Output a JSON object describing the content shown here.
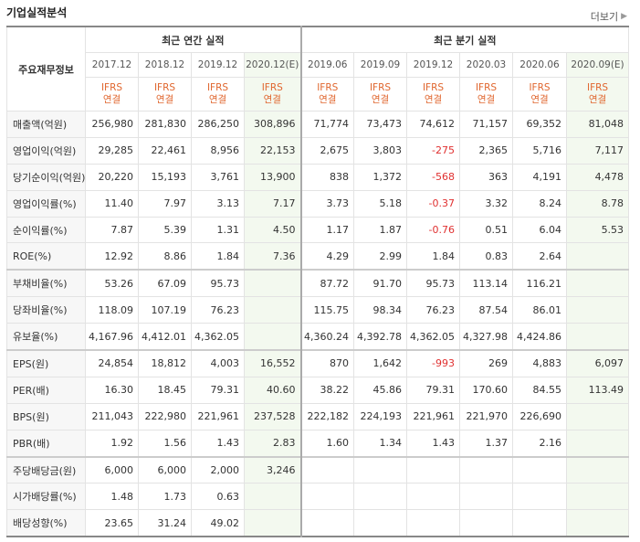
{
  "title": "기업실적분석",
  "more_label": "더보기",
  "header": {
    "corner": "주요재무정보",
    "annual_group": "최근 연간 실적",
    "quarter_group": "최근 분기 실적",
    "annual_periods": [
      "2017.12",
      "2018.12",
      "2019.12",
      "2020.12(E)"
    ],
    "quarter_periods": [
      "2019.06",
      "2019.09",
      "2019.12",
      "2020.03",
      "2020.06",
      "2020.09(E)"
    ],
    "basis_line1": "IFRS",
    "basis_line2": "연결"
  },
  "rows": [
    {
      "label": "매출액(억원)",
      "values": [
        "256,980",
        "281,830",
        "286,250",
        "308,896",
        "71,774",
        "73,473",
        "74,612",
        "71,157",
        "69,352",
        "81,048"
      ]
    },
    {
      "label": "영업이익(억원)",
      "values": [
        "29,285",
        "22,461",
        "8,956",
        "22,153",
        "2,675",
        "3,803",
        "-275",
        "2,365",
        "5,716",
        "7,117"
      ]
    },
    {
      "label": "당기순이익(억원)",
      "values": [
        "20,220",
        "15,193",
        "3,761",
        "13,900",
        "838",
        "1,372",
        "-568",
        "363",
        "4,191",
        "4,478"
      ]
    },
    {
      "label": "영업이익률(%)",
      "values": [
        "11.40",
        "7.97",
        "3.13",
        "7.17",
        "3.73",
        "5.18",
        "-0.37",
        "3.32",
        "8.24",
        "8.78"
      ]
    },
    {
      "label": "순이익률(%)",
      "values": [
        "7.87",
        "5.39",
        "1.31",
        "4.50",
        "1.17",
        "1.87",
        "-0.76",
        "0.51",
        "6.04",
        "5.53"
      ]
    },
    {
      "label": "ROE(%)",
      "values": [
        "12.92",
        "8.86",
        "1.84",
        "7.36",
        "4.29",
        "2.99",
        "1.84",
        "0.83",
        "2.64",
        ""
      ]
    },
    {
      "label": "부채비율(%)",
      "values": [
        "53.26",
        "67.09",
        "95.73",
        "",
        "87.72",
        "91.70",
        "95.73",
        "113.14",
        "116.21",
        ""
      ]
    },
    {
      "label": "당좌비율(%)",
      "values": [
        "118.09",
        "107.19",
        "76.23",
        "",
        "115.75",
        "98.34",
        "76.23",
        "87.54",
        "86.01",
        ""
      ]
    },
    {
      "label": "유보율(%)",
      "values": [
        "4,167.96",
        "4,412.01",
        "4,362.05",
        "",
        "4,360.24",
        "4,392.78",
        "4,362.05",
        "4,327.98",
        "4,424.86",
        ""
      ]
    },
    {
      "label": "EPS(원)",
      "values": [
        "24,854",
        "18,812",
        "4,003",
        "16,552",
        "870",
        "1,642",
        "-993",
        "269",
        "4,883",
        "6,097"
      ]
    },
    {
      "label": "PER(배)",
      "values": [
        "16.30",
        "18.45",
        "79.31",
        "40.60",
        "38.22",
        "45.86",
        "79.31",
        "170.60",
        "84.55",
        "113.49"
      ]
    },
    {
      "label": "BPS(원)",
      "values": [
        "211,043",
        "222,980",
        "221,961",
        "237,528",
        "222,182",
        "224,193",
        "221,961",
        "221,970",
        "226,690",
        ""
      ]
    },
    {
      "label": "PBR(배)",
      "values": [
        "1.92",
        "1.56",
        "1.43",
        "2.83",
        "1.60",
        "1.34",
        "1.43",
        "1.37",
        "2.16",
        ""
      ]
    },
    {
      "label": "주당배당금(원)",
      "values": [
        "6,000",
        "6,000",
        "2,000",
        "3,246",
        "",
        "",
        "",
        "",
        "",
        ""
      ]
    },
    {
      "label": "시가배당률(%)",
      "values": [
        "1.48",
        "1.73",
        "0.63",
        "",
        "",
        "",
        "",
        "",
        "",
        ""
      ]
    },
    {
      "label": "배당성향(%)",
      "values": [
        "23.65",
        "31.24",
        "49.02",
        "",
        "",
        "",
        "",
        "",
        "",
        ""
      ]
    }
  ]
}
